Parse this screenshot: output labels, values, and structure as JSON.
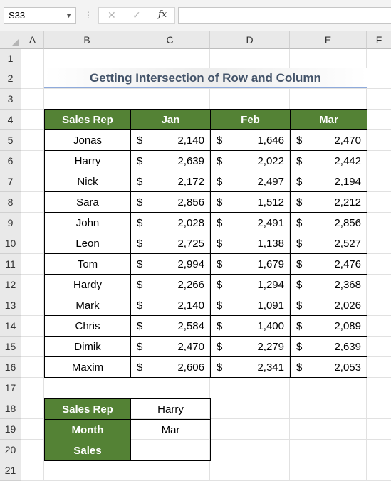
{
  "formula_bar": {
    "name_box": "S33",
    "name_box_arrow": "▼",
    "separator": "⋮",
    "cancel_icon": "✕",
    "enter_icon": "✓",
    "fx_label": "fx",
    "formula": ""
  },
  "columns": [
    "A",
    "B",
    "C",
    "D",
    "E",
    "F"
  ],
  "rows": [
    "1",
    "2",
    "3",
    "4",
    "5",
    "6",
    "7",
    "8",
    "9",
    "10",
    "11",
    "12",
    "13",
    "14",
    "15",
    "16",
    "17",
    "18",
    "19",
    "20",
    "21"
  ],
  "title": "Getting Intersection of Row and Column",
  "table": {
    "headers": [
      "Sales Rep",
      "Jan",
      "Feb",
      "Mar"
    ],
    "currency": "$",
    "rows": [
      {
        "name": "Jonas",
        "jan": "2,140",
        "feb": "1,646",
        "mar": "2,470"
      },
      {
        "name": "Harry",
        "jan": "2,639",
        "feb": "2,022",
        "mar": "2,442"
      },
      {
        "name": "Nick",
        "jan": "2,172",
        "feb": "2,497",
        "mar": "2,194"
      },
      {
        "name": "Sara",
        "jan": "2,856",
        "feb": "1,512",
        "mar": "2,212"
      },
      {
        "name": "John",
        "jan": "2,028",
        "feb": "2,491",
        "mar": "2,856"
      },
      {
        "name": "Leon",
        "jan": "2,725",
        "feb": "1,138",
        "mar": "2,527"
      },
      {
        "name": "Tom",
        "jan": "2,994",
        "feb": "1,679",
        "mar": "2,476"
      },
      {
        "name": "Hardy",
        "jan": "2,266",
        "feb": "1,294",
        "mar": "2,368"
      },
      {
        "name": "Mark",
        "jan": "2,140",
        "feb": "1,091",
        "mar": "2,026"
      },
      {
        "name": "Chris",
        "jan": "2,584",
        "feb": "1,400",
        "mar": "2,089"
      },
      {
        "name": "Dimik",
        "jan": "2,470",
        "feb": "2,279",
        "mar": "2,639"
      },
      {
        "name": "Maxim",
        "jan": "2,606",
        "feb": "2,341",
        "mar": "2,053"
      }
    ]
  },
  "lookup": {
    "sales_rep_label": "Sales Rep",
    "sales_rep_value": "Harry",
    "month_label": "Month",
    "month_value": "Mar",
    "sales_label": "Sales",
    "sales_value": ""
  }
}
